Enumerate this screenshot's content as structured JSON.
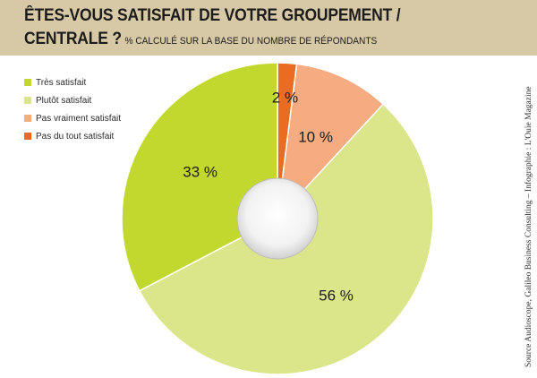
{
  "header": {
    "title_line1": "ÊTES-VOUS SATISFAIT DE VOTRE GROUPEMENT /",
    "title_line2": "CENTRALE ?",
    "subtitle": "% CALCULÉ SUR LA BASE DU NOMBRE DE RÉPONDANTS"
  },
  "source": "Source Audioscope, Galileo Business Consulting – Infographie : L'Ouïe Magazine",
  "chart_data": {
    "type": "pie",
    "title": "ÊTES-VOUS SATISFAIT DE VOTRE GROUPEMENT / CENTRALE ?",
    "subtitle": "% CALCULÉ SUR LA BASE DU NOMBRE DE RÉPONDANTS",
    "categories": [
      "Très satisfait",
      "Plutôt satisfait",
      "Pas vraiment satisfait",
      "Pas du tout satisfait"
    ],
    "values": [
      33,
      56,
      10,
      2
    ],
    "labels": [
      "33 %",
      "56 %",
      "10 %",
      "2 %"
    ],
    "colors": [
      "#c3d82f",
      "#dbe589",
      "#f6ab80",
      "#ea6b22"
    ],
    "legend_position": "top-left",
    "order": "clockwise from top: Pas du tout satisfait, Pas vraiment satisfait, Plutôt satisfait, Très satisfait",
    "center_hole": true,
    "grid": false
  }
}
